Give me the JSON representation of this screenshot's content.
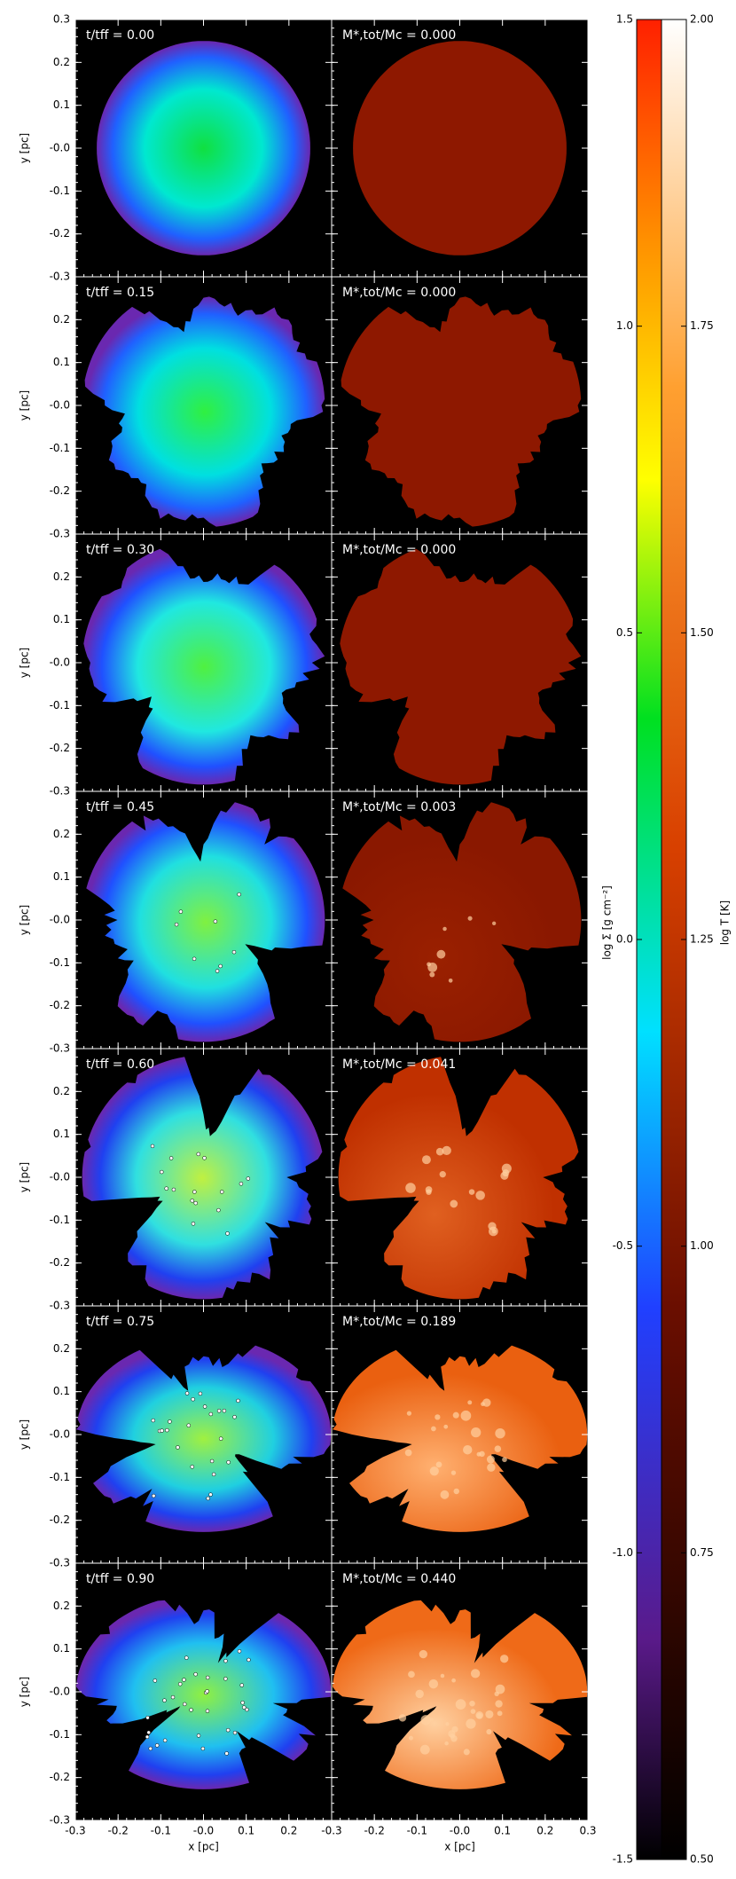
{
  "chart_data": {
    "type": "image-grid",
    "xlabel": "x [pc]",
    "ylabel": "y [pc]",
    "xlim": [
      -0.3,
      0.3
    ],
    "ylim": [
      -0.3,
      0.3
    ],
    "xticks": [
      -0.3,
      -0.2,
      -0.1,
      {
        "value": 0,
        "label": "-0.0"
      },
      0.1,
      0.2,
      0.3
    ],
    "yticks": [
      -0.3,
      -0.2,
      -0.1,
      {
        "value": 0,
        "label": "-0.0"
      },
      0.1,
      0.2,
      0.3
    ],
    "rows": [
      {
        "left_label": "t/tff = 0.00",
        "right_label": "M*,tot/Mc = 0.000"
      },
      {
        "left_label": "t/tff = 0.15",
        "right_label": "M*,tot/Mc = 0.000"
      },
      {
        "left_label": "t/tff = 0.30",
        "right_label": "M*,tot/Mc = 0.000"
      },
      {
        "left_label": "t/tff = 0.45",
        "right_label": "M*,tot/Mc = 0.003"
      },
      {
        "left_label": "t/tff = 0.60",
        "right_label": "M*,tot/Mc = 0.041"
      },
      {
        "left_label": "t/tff = 0.75",
        "right_label": "M*,tot/Mc = 0.189"
      },
      {
        "left_label": "t/tff = 0.90",
        "right_label": "M*,tot/Mc = 0.440"
      }
    ],
    "colorbar_left": {
      "label": "log Σ [g cm⁻²]",
      "lim": [
        -1.5,
        1.5
      ],
      "ticks": [
        -1.5,
        {
          "value": -1,
          "label": "-1.0"
        },
        -0.5,
        {
          "value": 0,
          "label": "0.0"
        },
        0.5,
        {
          "value": 1,
          "label": "1.0"
        },
        1.5
      ]
    },
    "colorbar_right": {
      "label": "log T [K]",
      "lim": [
        0.5,
        2.0
      ],
      "ticks": [
        {
          "value": 0.5,
          "label": "0.50"
        },
        0.75,
        {
          "value": 1,
          "label": "1.00"
        },
        1.25,
        {
          "value": 1.5,
          "label": "1.50"
        },
        1.75,
        {
          "value": 2,
          "label": "2.00"
        }
      ]
    }
  }
}
